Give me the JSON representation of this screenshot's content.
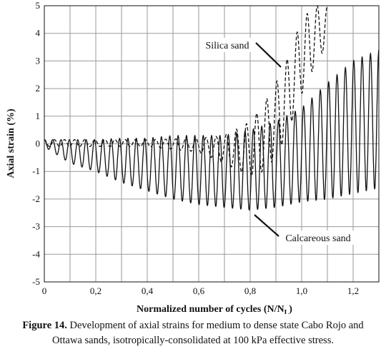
{
  "chart_data": {
    "type": "line",
    "xlabel": "Normalized number of cycles (N/N",
    "xlabel_sub": "L",
    "xlabel_close": ")",
    "ylabel": "Axial strain (%)",
    "xlim": [
      0,
      1.3
    ],
    "ylim": [
      -5,
      5
    ],
    "x_ticks": [
      "0",
      "0,2",
      "0,4",
      "0,6",
      "0,8",
      "1,0",
      "1,2"
    ],
    "x_tick_values": [
      0,
      0.2,
      0.4,
      0.6,
      0.8,
      1.0,
      1.2
    ],
    "y_ticks": [
      "-5",
      "-4",
      "-3",
      "-2",
      "-1",
      "0",
      "1",
      "2",
      "3",
      "4",
      "5"
    ],
    "y_tick_values": [
      -5,
      -4,
      -3,
      -2,
      -1,
      0,
      1,
      2,
      3,
      4,
      5
    ],
    "grid": true,
    "series": [
      {
        "name": "Calcareous sand",
        "style": "solid",
        "cycles": 40,
        "envelope_x": [
          0,
          0.1,
          0.2,
          0.3,
          0.4,
          0.5,
          0.6,
          0.7,
          0.8,
          0.9,
          1.0,
          1.1,
          1.2,
          1.3
        ],
        "envelope_max": [
          0.15,
          0.15,
          0.15,
          0.2,
          0.2,
          0.3,
          0.3,
          0.3,
          0.5,
          0.8,
          1.3,
          2.2,
          3.0,
          3.4
        ],
        "envelope_min": [
          -0.1,
          -0.7,
          -1.0,
          -1.4,
          -1.7,
          -2.0,
          -2.2,
          -2.3,
          -2.4,
          -2.3,
          -2.1,
          -2.0,
          -1.8,
          -1.6
        ]
      },
      {
        "name": "Silica sand",
        "style": "dashed",
        "cycles": 28,
        "envelope_x": [
          0,
          0.2,
          0.4,
          0.6,
          0.7,
          0.8,
          0.85,
          0.9,
          0.95,
          1.0,
          1.05,
          1.1
        ],
        "envelope_max": [
          0.15,
          0.15,
          0.15,
          0.2,
          0.3,
          0.8,
          1.4,
          2.2,
          3.2,
          4.5,
          5.0,
          5.0
        ],
        "envelope_min": [
          -0.1,
          -0.1,
          -0.1,
          -0.3,
          -0.7,
          -1.2,
          -1.0,
          -0.5,
          0.5,
          1.8,
          2.8,
          3.6
        ]
      }
    ],
    "annotations": [
      {
        "text": "Silica sand",
        "pointer_to": [
          0.93,
          2.9
        ]
      },
      {
        "text": "Calcareous sand",
        "pointer_to": [
          0.82,
          -2.4
        ]
      }
    ]
  },
  "caption": {
    "label": "Figure 14.",
    "line1": " Development of axial strains for medium to dense state Cabo Rojo and",
    "line2": "Ottawa sands, isotropically-consolidated at 100 kPa effective stress."
  }
}
